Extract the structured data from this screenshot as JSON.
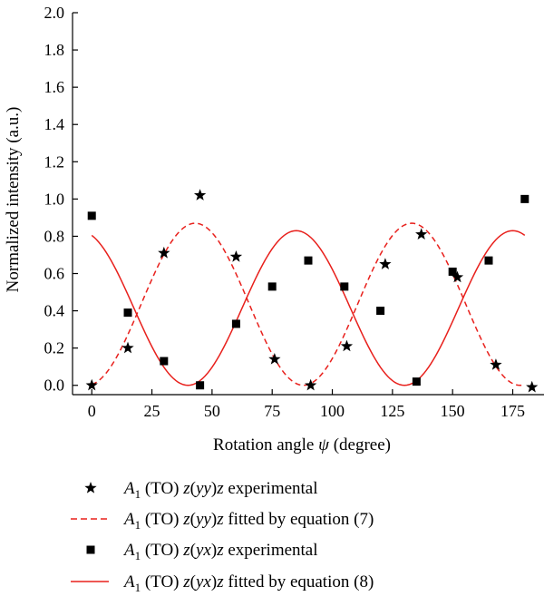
{
  "chart_data": {
    "type": "scatter",
    "title": "",
    "xlabel": "Rotation angle ψ (degree)",
    "ylabel": "Normalized intensity (a.u.)",
    "xlim": [
      -8,
      188
    ],
    "ylim": [
      -0.05,
      2.0
    ],
    "x_ticks": [
      0,
      25,
      50,
      75,
      100,
      125,
      150,
      175
    ],
    "y_ticks": [
      0.0,
      0.2,
      0.4,
      0.6,
      0.8,
      1.0,
      1.2,
      1.4,
      1.6,
      1.8,
      2.0
    ],
    "y_tick_labels": [
      "0.0",
      "0.2",
      "0.4",
      "0.6",
      "0.8",
      "1.0",
      "1.2",
      "1.4",
      "1.6",
      "1.8",
      "2.0"
    ],
    "grid": false,
    "legend_position": "below",
    "colors": {
      "fit": "#e8201c",
      "points": "#000000",
      "axis": "#000000"
    },
    "series": [
      {
        "name": "A1 (TO) z(yy)z experimental",
        "kind": "points",
        "marker": "star",
        "x": [
          0,
          15,
          30,
          45,
          60,
          76,
          91,
          106,
          122,
          137,
          152,
          168,
          183
        ],
        "y": [
          0.0,
          0.2,
          0.71,
          1.02,
          0.69,
          0.14,
          0.0,
          0.21,
          0.65,
          0.81,
          0.58,
          0.11,
          -0.01
        ]
      },
      {
        "name": "A1 (TO) z(yy)z fitted by equation (7)",
        "kind": "line",
        "style": "dashed",
        "equation": "y = 0.87 * sin^2(2*(x+2)*pi/180)",
        "x_range": [
          0,
          180
        ]
      },
      {
        "name": "A1 (TO) z(yx)z experimental",
        "kind": "points",
        "marker": "square",
        "x": [
          0,
          15,
          30,
          45,
          60,
          75,
          90,
          105,
          120,
          135,
          150,
          165,
          180
        ],
        "y": [
          0.91,
          0.39,
          0.13,
          0.0,
          0.33,
          0.53,
          0.67,
          0.53,
          0.4,
          0.02,
          0.61,
          0.67,
          1.0
        ]
      },
      {
        "name": "A1 (TO) z(yx)z fitted by equation (8)",
        "kind": "line",
        "style": "solid",
        "equation": "y = 0.83 * cos^2(2*(x-85)*pi/180)",
        "x_range": [
          0,
          180
        ]
      }
    ]
  },
  "legend": {
    "entries": [
      {
        "prefix": "A",
        "sub": "1",
        "text": " (TO) ",
        "ital1": "z",
        "paren": "(",
        "ital2": "yy",
        "paren2": ")",
        "ital3": "z",
        "suffix": " experimental"
      },
      {
        "prefix": "A",
        "sub": "1",
        "text": " (TO) ",
        "ital1": "z",
        "paren": "(",
        "ital2": "yy",
        "paren2": ")",
        "ital3": "z",
        "suffix": " fitted by equation (7)"
      },
      {
        "prefix": "A",
        "sub": "1",
        "text": " (TO) ",
        "ital1": "z",
        "paren": "(",
        "ital2": "yx",
        "paren2": ")",
        "ital3": "z",
        "suffix": " experimental"
      },
      {
        "prefix": "A",
        "sub": "1",
        "text": " (TO) ",
        "ital1": "z",
        "paren": "(",
        "ital2": "yx",
        "paren2": ")",
        "ital3": "z",
        "suffix": " fitted by equation (8)"
      }
    ]
  }
}
